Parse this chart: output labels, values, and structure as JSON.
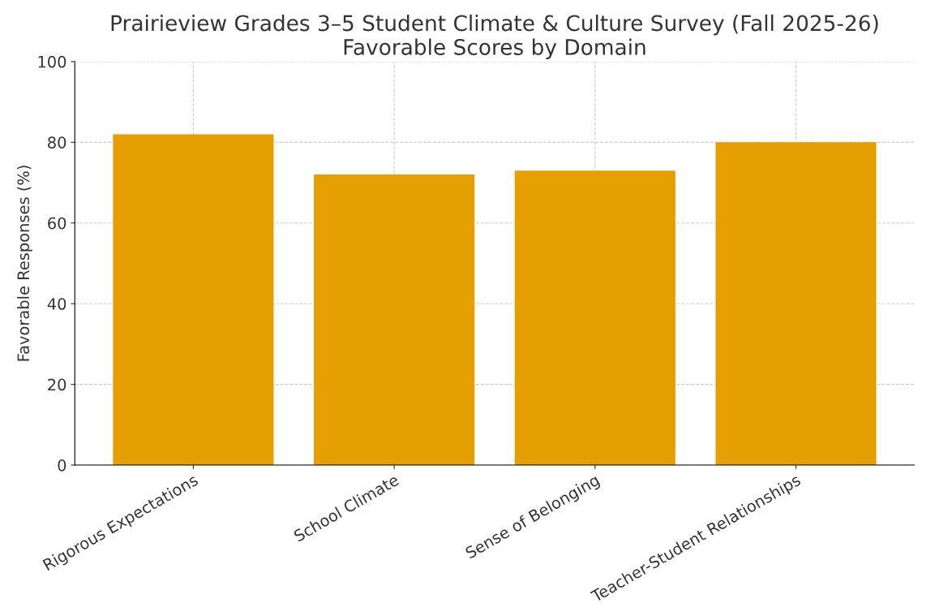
{
  "chart_data": {
    "type": "bar",
    "title": "Prairieview Grades 3–5 Student Climate & Culture Survey (Fall 2025-26)\nFavorable Scores by Domain",
    "ylabel": "Favorable Responses (%)",
    "categories": [
      "Rigorous Expectations",
      "School Climate",
      "Sense of Belonging",
      "Teacher-Student Relationships"
    ],
    "values": [
      82,
      72,
      73,
      80
    ],
    "color": "#e69f00",
    "ylim": [
      0,
      100
    ],
    "yticks": [
      0,
      20,
      40,
      60,
      80,
      100
    ],
    "grid": true
  }
}
